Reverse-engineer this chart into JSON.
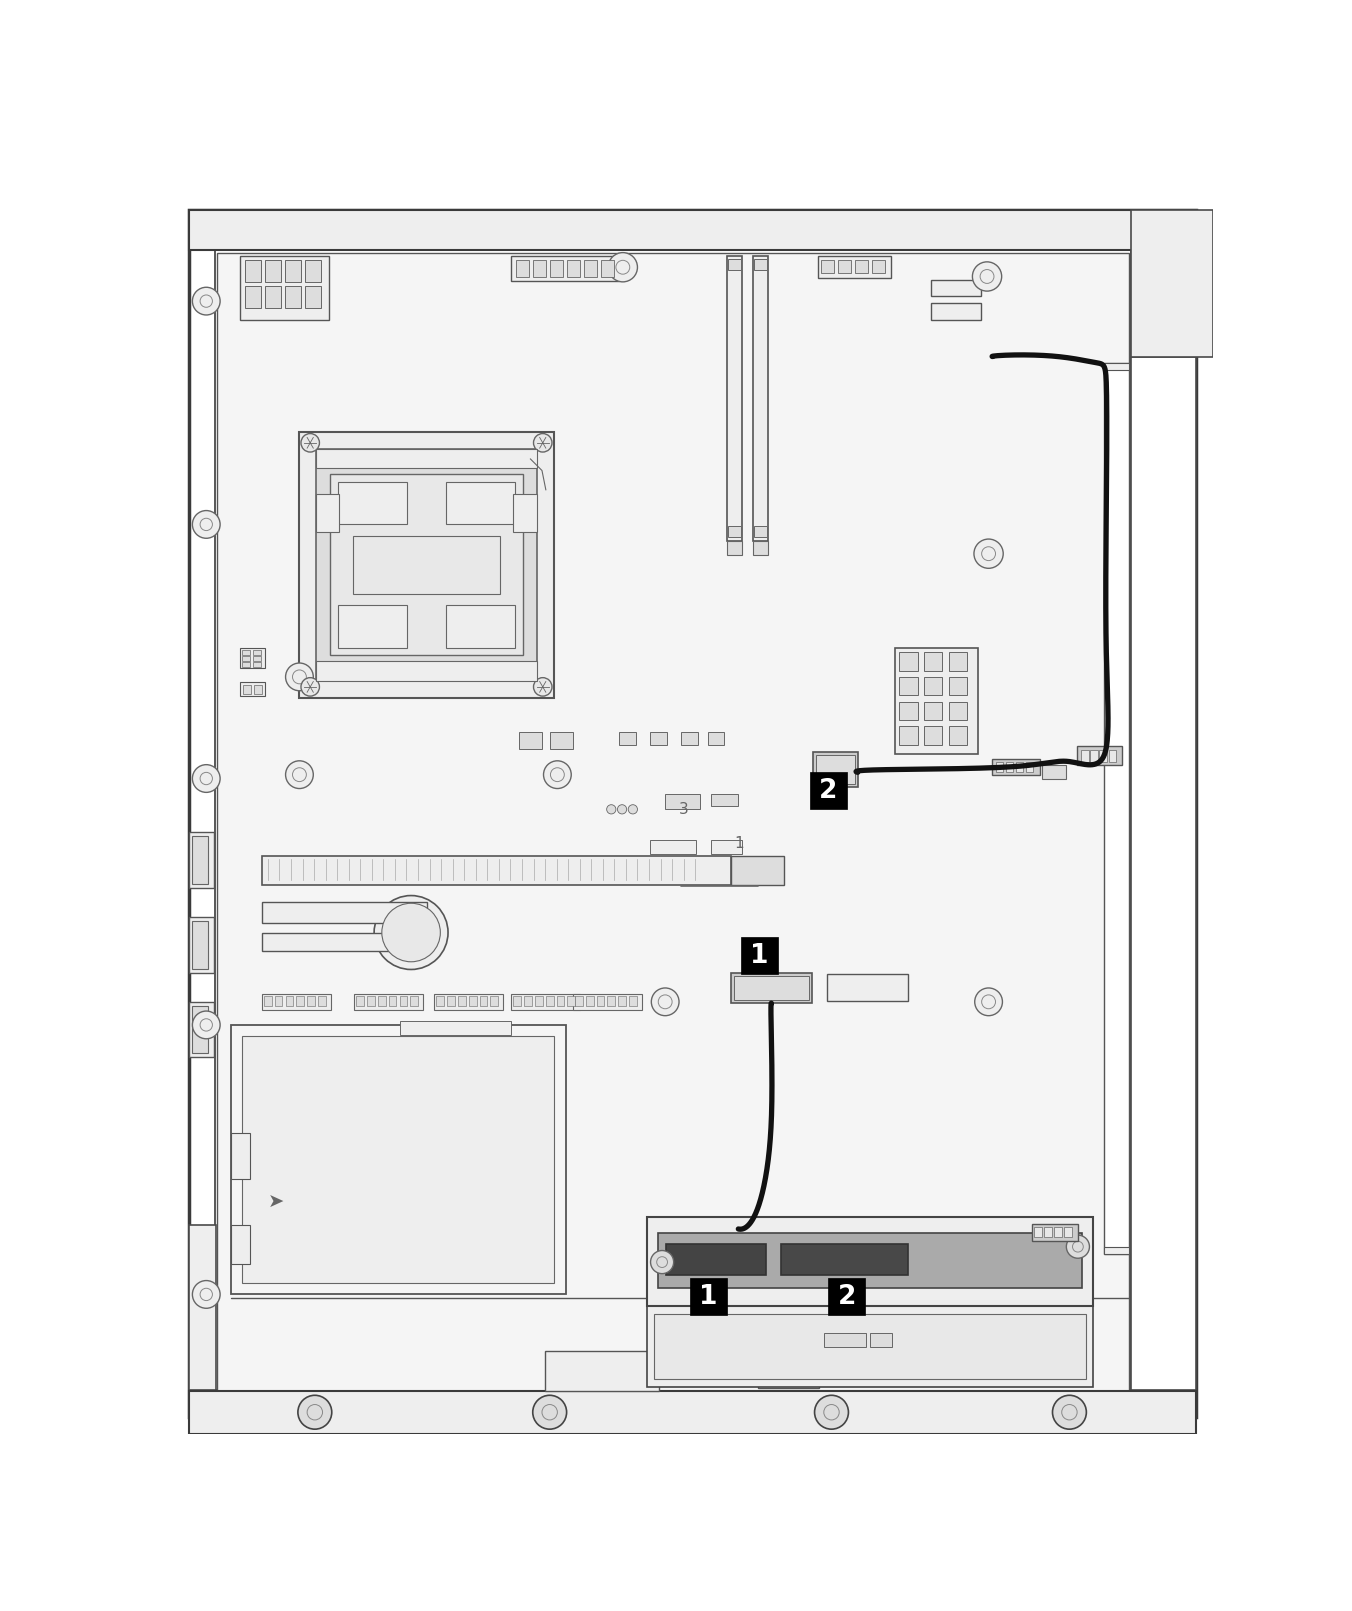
{
  "figure_width": 13.52,
  "figure_height": 16.11,
  "dpi": 100,
  "bg": "#ffffff",
  "lc": "#555555",
  "lc2": "#444444",
  "lc3": "#666666",
  "lc_light": "#888888",
  "fill_light": "#f5f5f5",
  "fill_mid": "#eeeeee",
  "fill_dark": "#dddddd",
  "fill_comp": "#e8e8e8",
  "fill_connector": "#cccccc",
  "fill_dark_comp": "#555555",
  "cable_color": "#111111",
  "cable_lw": 3.8,
  "label_bg": "#000000",
  "label_fg": "#ffffff",
  "label_size": 48,
  "label_font": 19
}
